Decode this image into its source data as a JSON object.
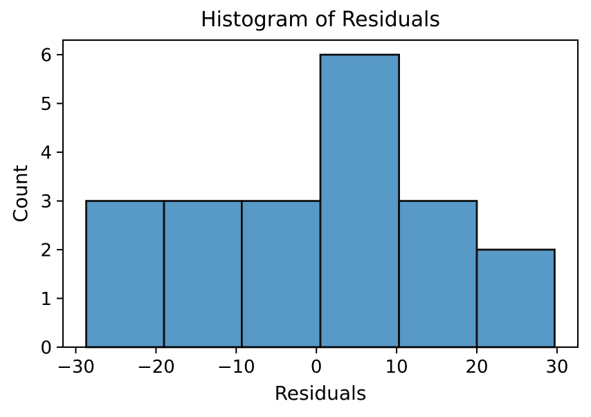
{
  "chart_data": {
    "type": "bar",
    "subtype": "histogram",
    "title": "Histogram of Residuals",
    "xlabel": "Residuals",
    "ylabel": "Count",
    "bin_edges": [
      -28.7,
      -19.0,
      -9.3,
      0.5,
      10.3,
      20.0,
      29.7
    ],
    "counts": [
      3,
      3,
      3,
      6,
      3,
      2
    ],
    "xticks": [
      -30,
      -20,
      -10,
      0,
      10,
      20,
      30
    ],
    "yticks": [
      0,
      1,
      2,
      3,
      4,
      5,
      6
    ],
    "xlim": [
      -31.6,
      32.6
    ],
    "ylim": [
      0,
      6.3
    ],
    "grid": false,
    "legend": null,
    "colors": {
      "bar_fill": "#5799C7",
      "bar_edge": "#0e0e0e",
      "axis": "#000000",
      "text": "#000000",
      "background": "#ffffff"
    }
  }
}
